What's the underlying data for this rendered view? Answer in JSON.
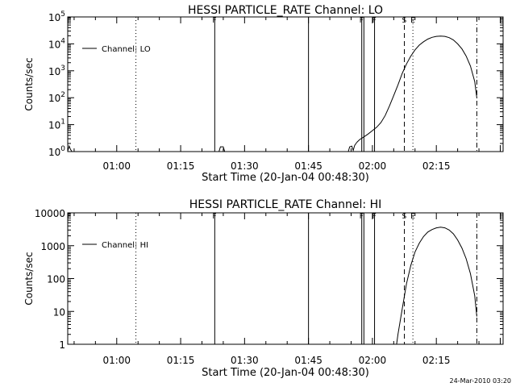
{
  "footer_timestamp": "24-Mar-2010 03:20",
  "chart_data": [
    {
      "type": "line",
      "title": "HESSI PARTICLE_RATE Channel: LO",
      "xlabel": "Start Time (20-Jan-04 00:48:30)",
      "ylabel": "Counts/sec",
      "yscale": "log",
      "ylim": [
        1,
        100000
      ],
      "xlim": [
        "00:48:30",
        "02:30:40"
      ],
      "y_tick_labels": [
        "10^0",
        "10^1",
        "10^2",
        "10^3",
        "10^4",
        "10^5"
      ],
      "x_tick_labels": [
        "01:00",
        "01:15",
        "01:30",
        "01:45",
        "02:00",
        "02:15"
      ],
      "legend": "Channel: LO",
      "legend_position": "top-left",
      "markers": [
        {
          "time": "01:04:30",
          "style": "dotted"
        },
        {
          "time": "01:23:00",
          "style": "solid",
          "label": "F"
        },
        {
          "time": "01:45:00",
          "style": "solid"
        },
        {
          "time": "01:57:30",
          "style": "solid",
          "label": "F"
        },
        {
          "time": "01:58:00",
          "style": "solid"
        },
        {
          "time": "02:00:30",
          "style": "solid",
          "label": "F"
        },
        {
          "time": "02:07:30",
          "style": "dashed",
          "label": "S"
        },
        {
          "time": "02:09:30",
          "style": "dotted",
          "label": "E"
        },
        {
          "time": "02:24:30",
          "style": "dashdot"
        }
      ],
      "series": [
        {
          "name": "Channel: LO",
          "segments": [
            {
              "x": [
                "00:48:30",
                "00:48:50",
                "00:49:10",
                "00:49:30"
              ],
              "y": [
                1.05,
                1.6,
                1.2,
                1.0
              ]
            },
            {
              "x": [
                "01:24:00",
                "01:24:20",
                "01:25:00",
                "01:25:20"
              ],
              "y": [
                1.0,
                1.5,
                1.5,
                1.0
              ]
            },
            {
              "x": [
                "01:54:20",
                "01:54:40",
                "01:55:10",
                "01:55:30",
                "01:55:50",
                "01:56:20"
              ],
              "y": [
                1.0,
                1.5,
                1.6,
                1.1,
                1.7,
                2.2
              ]
            },
            {
              "x": [
                "01:56:20",
                "01:57:00",
                "01:58:00",
                "01:59:00",
                "02:00:00",
                "02:01:00",
                "02:02:00",
                "02:03:00",
                "02:04:00",
                "02:05:00",
                "02:06:00",
                "02:07:00",
                "02:08:00",
                "02:09:00",
                "02:10:00",
                "02:11:00",
                "02:12:00",
                "02:13:00",
                "02:14:00",
                "02:15:00",
                "02:16:00",
                "02:17:00",
                "02:18:00",
                "02:19:00",
                "02:20:00",
                "02:21:00",
                "02:22:00",
                "02:23:00",
                "02:24:00",
                "02:24:30"
              ],
              "y": [
                2.2,
                2.8,
                3.5,
                4.5,
                6,
                8,
                12,
                22,
                50,
                120,
                300,
                800,
                1800,
                3500,
                6000,
                9000,
                12000,
                15000,
                17500,
                19000,
                19500,
                19000,
                17000,
                14000,
                10000,
                6500,
                3500,
                1500,
                400,
                100
              ]
            }
          ]
        }
      ]
    },
    {
      "type": "line",
      "title": "HESSI PARTICLE_RATE Channel: HI",
      "xlabel": "Start Time (20-Jan-04 00:48:30)",
      "ylabel": "Counts/sec",
      "yscale": "log",
      "ylim": [
        1,
        10000
      ],
      "xlim": [
        "00:48:30",
        "02:30:40"
      ],
      "y_tick_labels": [
        "1",
        "10",
        "100",
        "1000",
        "10000"
      ],
      "x_tick_labels": [
        "01:00",
        "01:15",
        "01:30",
        "01:45",
        "02:00",
        "02:15"
      ],
      "legend": "Channel: HI",
      "legend_position": "top-left",
      "markers": [
        {
          "time": "01:04:30",
          "style": "dotted"
        },
        {
          "time": "01:23:00",
          "style": "solid",
          "label": "F"
        },
        {
          "time": "01:45:00",
          "style": "solid"
        },
        {
          "time": "01:57:30",
          "style": "solid",
          "label": "F"
        },
        {
          "time": "01:58:00",
          "style": "solid"
        },
        {
          "time": "02:00:30",
          "style": "solid",
          "label": "F"
        },
        {
          "time": "02:07:30",
          "style": "dashed",
          "label": "S"
        },
        {
          "time": "02:09:30",
          "style": "dotted",
          "label": "E"
        },
        {
          "time": "02:24:30",
          "style": "dashdot"
        }
      ],
      "series": [
        {
          "name": "Channel: HI",
          "segments": [
            {
              "x": [
                "02:05:40",
                "02:06:00",
                "02:07:00",
                "02:08:00",
                "02:09:00",
                "02:10:00",
                "02:11:00",
                "02:12:00",
                "02:13:00",
                "02:14:00",
                "02:15:00",
                "02:16:00",
                "02:17:00",
                "02:18:00",
                "02:19:00",
                "02:20:00",
                "02:21:00",
                "02:22:00",
                "02:23:00",
                "02:24:00",
                "02:24:30"
              ],
              "y": [
                1.0,
                2,
                12,
                70,
                250,
                650,
                1200,
                1900,
                2600,
                3100,
                3500,
                3650,
                3500,
                3000,
                2300,
                1500,
                850,
                400,
                140,
                30,
                7
              ]
            }
          ]
        }
      ]
    }
  ]
}
